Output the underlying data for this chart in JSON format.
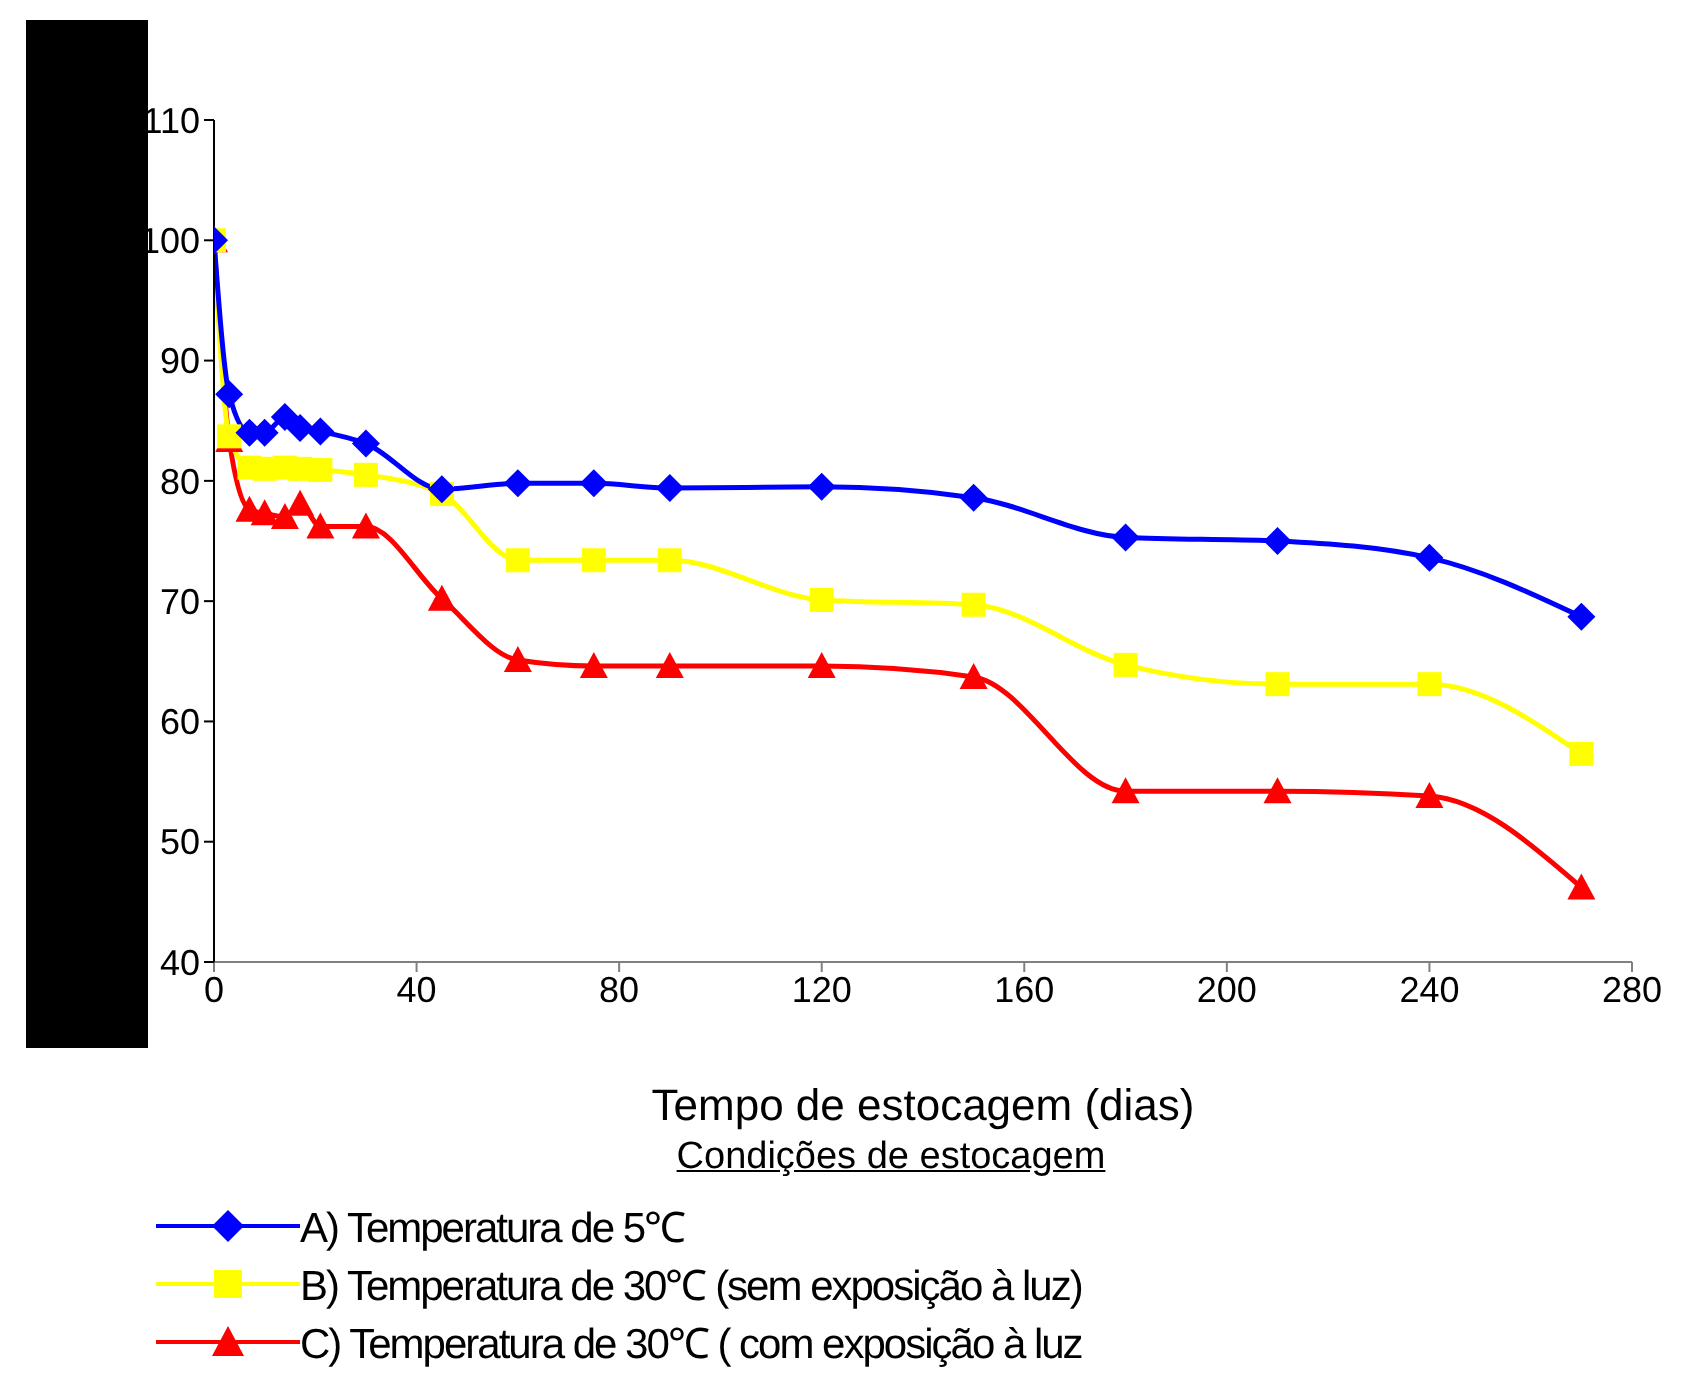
{
  "chart_data": {
    "type": "line",
    "xlabel": "Tempo de estocagem (dias)",
    "legend_title": "Condições de estocagem",
    "x": [
      0,
      3,
      7,
      10,
      14,
      17,
      21,
      30,
      45,
      60,
      75,
      90,
      120,
      150,
      180,
      210,
      240,
      270
    ],
    "series": [
      {
        "name": "A) Temperatura de 5℃",
        "color": "#0000ff",
        "marker": "diamond",
        "values": [
          100,
          87.2,
          84,
          84,
          85.3,
          84.4,
          84.1,
          83.1,
          79.3,
          79.8,
          79.8,
          79.4,
          79.5,
          78.6,
          75.3,
          75,
          73.6,
          68.7
        ]
      },
      {
        "name": "B) Temperatura de 30℃ (sem exposição à luz)",
        "color": "#ffff00",
        "marker": "square",
        "values": [
          100,
          83.7,
          81.1,
          81,
          81.1,
          81,
          80.9,
          80.5,
          78.9,
          73.4,
          73.4,
          73.4,
          70.1,
          69.7,
          64.7,
          63.1,
          63.1,
          57.3
        ]
      },
      {
        "name": "C) Temperatura de 30℃ ( com exposição à luz",
        "color": "#ff0000",
        "marker": "triangle",
        "values": [
          100,
          83.4,
          77.6,
          77.3,
          77,
          78.1,
          76.2,
          76.2,
          70.2,
          65.1,
          64.6,
          64.6,
          64.6,
          63.7,
          54.2,
          54.2,
          53.8,
          46.2
        ]
      }
    ],
    "xlim": [
      0,
      280
    ],
    "xticks": [
      0,
      40,
      80,
      120,
      160,
      200,
      240,
      280
    ],
    "ylim": [
      40,
      110
    ],
    "yticks": [
      40,
      50,
      60,
      70,
      80,
      90,
      100,
      110
    ],
    "grid": false,
    "legend": "bottom"
  }
}
